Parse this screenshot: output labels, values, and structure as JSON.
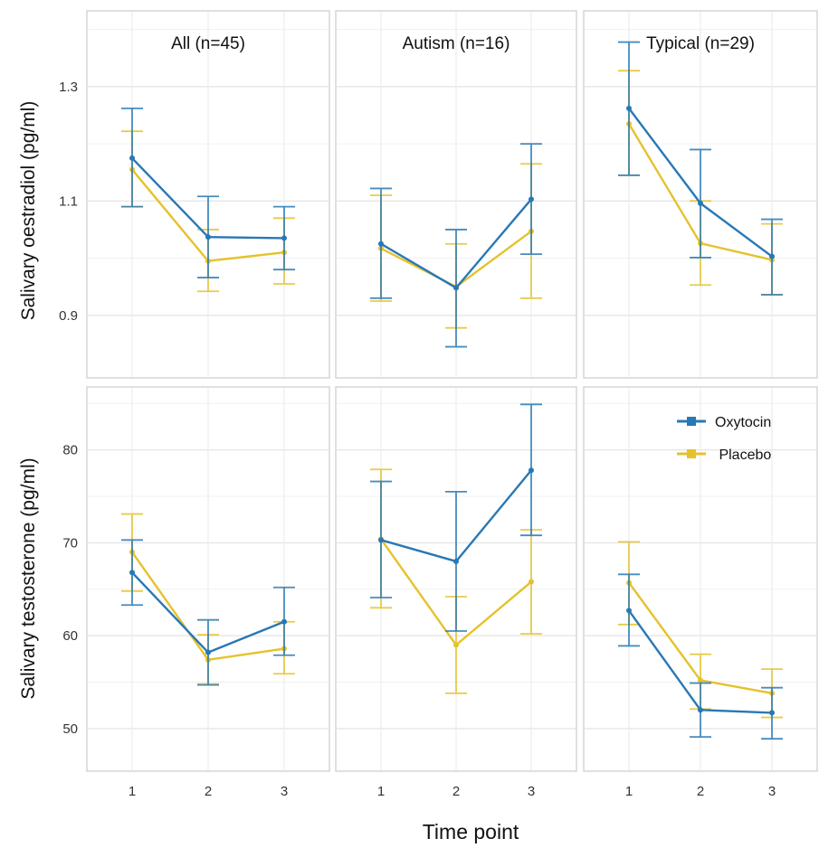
{
  "chart_data": [
    {
      "type": "line",
      "title": "All (n=45)",
      "xlabel": "Time point",
      "ylabel": "Salivary oestradiol (pg/ml)",
      "categories": [
        "1",
        "2",
        "3"
      ],
      "ylim": [
        0.8,
        1.42
      ],
      "yticks": [
        0.9,
        1.1,
        1.3
      ],
      "series": [
        {
          "name": "Oxytocin",
          "color": "#2878b5",
          "values": [
            1.175,
            1.037,
            1.035
          ],
          "lower": [
            1.09,
            0.966,
            0.98
          ],
          "upper": [
            1.262,
            1.108,
            1.09
          ]
        },
        {
          "name": "Placebo",
          "color": "#e5c22c",
          "values": [
            1.155,
            0.995,
            1.01
          ],
          "lower": [
            1.09,
            0.942,
            0.955
          ],
          "upper": [
            1.222,
            1.05,
            1.07
          ]
        }
      ]
    },
    {
      "type": "line",
      "title": "Autism (n=16)",
      "categories": [
        "1",
        "2",
        "3"
      ],
      "ylim": [
        0.8,
        1.42
      ],
      "series": [
        {
          "name": "Oxytocin",
          "color": "#2878b5",
          "values": [
            1.025,
            0.948,
            1.103
          ],
          "lower": [
            0.93,
            0.845,
            1.007
          ],
          "upper": [
            1.122,
            1.05,
            1.2
          ]
        },
        {
          "name": "Placebo",
          "color": "#e5c22c",
          "values": [
            1.017,
            0.95,
            1.047
          ],
          "lower": [
            0.925,
            0.878,
            0.93
          ],
          "upper": [
            1.11,
            1.025,
            1.165
          ]
        }
      ]
    },
    {
      "type": "line",
      "title": "Typical (n=29)",
      "categories": [
        "1",
        "2",
        "3"
      ],
      "ylim": [
        0.8,
        1.42
      ],
      "series": [
        {
          "name": "Oxytocin",
          "color": "#2878b5",
          "values": [
            1.262,
            1.096,
            1.003
          ],
          "lower": [
            1.145,
            1.001,
            0.936
          ],
          "upper": [
            1.378,
            1.19,
            1.068
          ]
        },
        {
          "name": "Placebo",
          "color": "#e5c22c",
          "values": [
            1.235,
            1.026,
            0.997
          ],
          "lower": [
            1.145,
            0.953,
            0.936
          ],
          "upper": [
            1.328,
            1.1,
            1.06
          ]
        }
      ]
    },
    {
      "type": "line",
      "title": "",
      "xlabel": "Time point",
      "ylabel": "Salivary testosterone (pg/ml)",
      "categories": [
        "1",
        "2",
        "3"
      ],
      "ylim": [
        46,
        86
      ],
      "yticks": [
        50,
        60,
        70,
        80
      ],
      "series": [
        {
          "name": "Oxytocin",
          "color": "#2878b5",
          "values": [
            66.8,
            58.2,
            61.5
          ],
          "lower": [
            63.3,
            54.7,
            57.9
          ],
          "upper": [
            70.3,
            61.7,
            65.2
          ]
        },
        {
          "name": "Placebo",
          "color": "#e5c22c",
          "values": [
            69,
            57.4,
            58.6
          ],
          "lower": [
            64.8,
            54.8,
            55.9
          ],
          "upper": [
            73.1,
            60.1,
            61.5
          ]
        }
      ]
    },
    {
      "type": "line",
      "title": "",
      "categories": [
        "1",
        "2",
        "3"
      ],
      "ylim": [
        46,
        86
      ],
      "series": [
        {
          "name": "Oxytocin",
          "color": "#2878b5",
          "values": [
            70.3,
            68,
            77.8
          ],
          "lower": [
            64.1,
            60.5,
            70.8
          ],
          "upper": [
            76.6,
            75.5,
            84.9
          ]
        },
        {
          "name": "Placebo",
          "color": "#e5c22c",
          "values": [
            70.4,
            59,
            65.8
          ],
          "lower": [
            63,
            53.8,
            60.2
          ],
          "upper": [
            77.9,
            64.2,
            71.4
          ]
        }
      ]
    },
    {
      "type": "line",
      "title": "",
      "categories": [
        "1",
        "2",
        "3"
      ],
      "ylim": [
        46,
        86
      ],
      "series": [
        {
          "name": "Oxytocin",
          "color": "#2878b5",
          "values": [
            62.7,
            52,
            51.7
          ],
          "lower": [
            58.9,
            49.1,
            48.9
          ],
          "upper": [
            66.6,
            54.9,
            54.4
          ]
        },
        {
          "name": "Placebo",
          "color": "#e5c22c",
          "values": [
            65.7,
            55.2,
            53.8
          ],
          "lower": [
            61.2,
            52.1,
            51.2
          ],
          "upper": [
            70.1,
            58,
            56.4
          ]
        }
      ]
    }
  ],
  "legend": {
    "position": "top-right",
    "items": [
      {
        "label": "Oxytocin",
        "color": "#2878b5"
      },
      {
        "label": " Placebo",
        "color": "#e5c22c"
      }
    ]
  },
  "axes": {
    "y_top_label": "Salivary oestradiol (pg/ml)",
    "y_bottom_label": "Salivary testosterone (pg/ml)",
    "x_label": "Time point"
  }
}
